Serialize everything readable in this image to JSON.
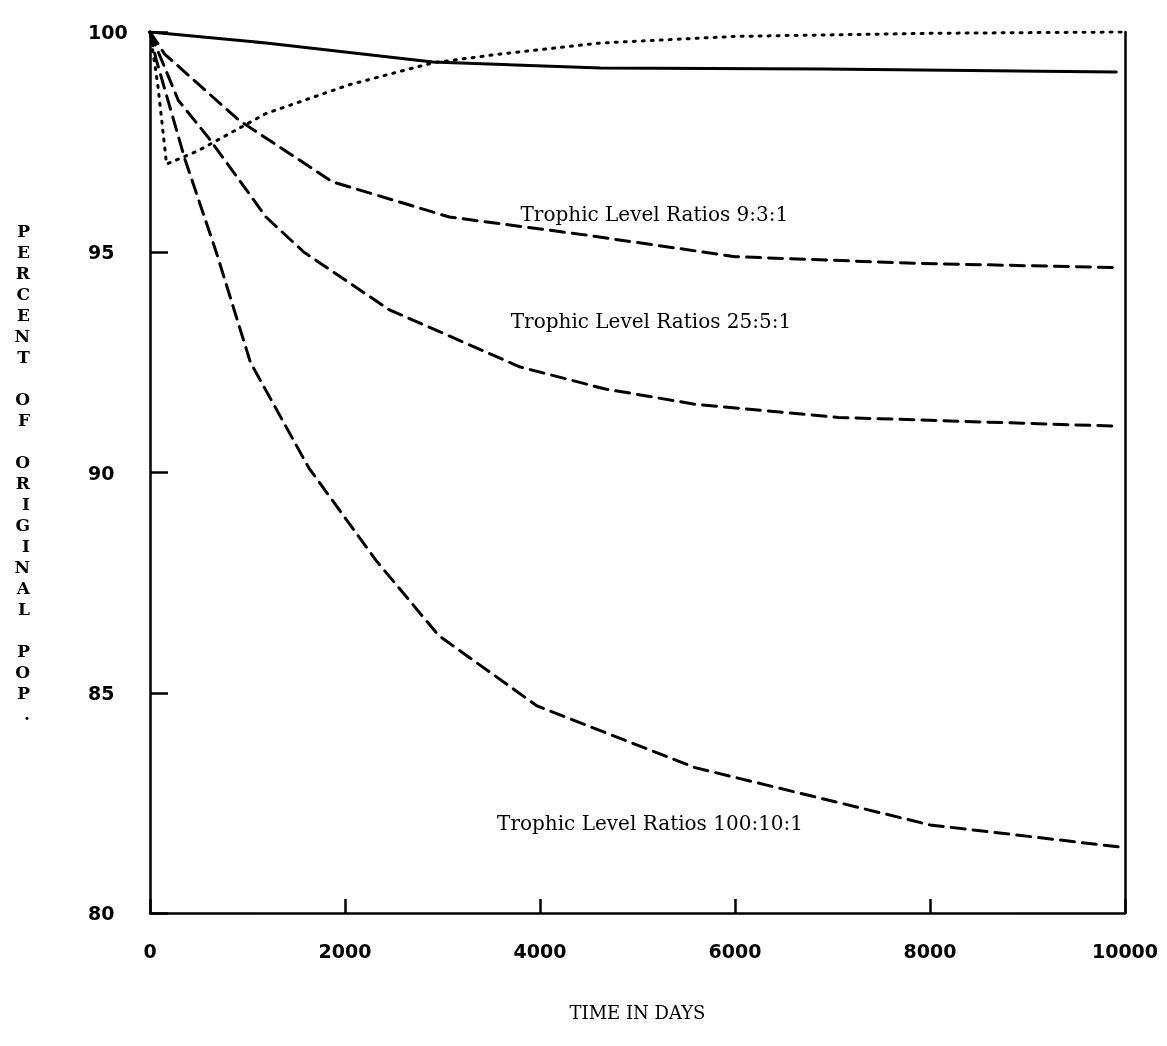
{
  "chart_data": {
    "type": "line",
    "xlabel": "TIME IN DAYS",
    "ylabel": "PERCENT OF ORIGINAL POP.",
    "xlim": [
      0,
      10000
    ],
    "xticks": [
      0,
      2000,
      4000,
      6000,
      8000,
      10000
    ],
    "ylim": [
      80,
      100
    ],
    "yticks": [
      80,
      85,
      90,
      95,
      100
    ],
    "grid": false,
    "marker": "none",
    "series": [
      {
        "color": "#000000",
        "line_style": "solid",
        "x": [
          0,
          1190,
          2900,
          4620,
          6920,
          9910
        ],
        "values": [
          100,
          99.75,
          99.32,
          99.18,
          99.16,
          99.09
        ]
      },
      {
        "color": "#000000",
        "line_style": "dotted",
        "x": [
          0,
          80,
          170,
          490,
          1190,
          2040,
          2900,
          3590,
          4620,
          6000,
          8000,
          9960
        ],
        "values": [
          100,
          98.8,
          97.0,
          97.3,
          98.15,
          98.8,
          99.3,
          99.5,
          99.75,
          99.9,
          99.97,
          100
        ]
      },
      {
        "name": "Trophic Level Ratios 9:3:1",
        "color": "#000000",
        "line_style": "dashed",
        "x": [
          0,
          150,
          910,
          1870,
          3070,
          4440,
          6000,
          7840,
          9940
        ],
        "values": [
          100,
          99.5,
          98.0,
          96.6,
          95.8,
          95.4,
          94.9,
          94.75,
          94.65
        ]
      },
      {
        "name": "Trophic Level Ratios 25:5:1",
        "color": "#000000",
        "line_style": "dashed",
        "x": [
          0,
          290,
          600,
          1190,
          1580,
          2450,
          3790,
          4660,
          5590,
          7060,
          9940
        ],
        "values": [
          100,
          98.45,
          97.6,
          95.8,
          95.0,
          93.7,
          92.4,
          91.9,
          91.55,
          91.25,
          91.05
        ]
      },
      {
        "name": "Trophic Level Ratios 100:10:1",
        "color": "#000000",
        "line_style": "dashed",
        "x": [
          0,
          60,
          360,
          680,
          1030,
          1630,
          2320,
          2960,
          3970,
          5590,
          8000,
          9940
        ],
        "values": [
          100,
          99.4,
          97.1,
          95.0,
          92.5,
          90.1,
          88.0,
          86.3,
          84.7,
          83.3,
          82.0,
          81.5
        ]
      }
    ]
  }
}
